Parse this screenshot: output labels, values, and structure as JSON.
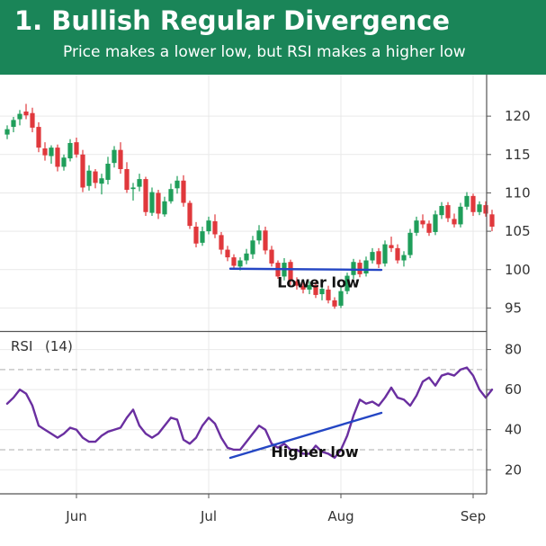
{
  "header": {
    "title": "1. Bullish Regular Divergence",
    "subtitle": "Price makes a lower low, but RSI makes a higher low"
  },
  "colors": {
    "header_bg": "#1a8558",
    "bull": "#1f9e5a",
    "bear": "#e0383c",
    "rsi_line": "#6a2fa0",
    "trendline": "#2446c4",
    "grid": "#e9e9e9",
    "guide": "#bdbdbd"
  },
  "chart_data": {
    "type": "candlestick",
    "title": "",
    "x_tick_labels": [
      "Jun",
      "Jul",
      "Aug",
      "Sep"
    ],
    "x_tick_index": [
      11,
      32,
      53,
      74
    ],
    "price_panel": {
      "ylim": [
        92,
        124
      ],
      "y_ticks": [
        95,
        100,
        105,
        110,
        115,
        120
      ],
      "ohlc": [
        [
          117.6,
          118.8,
          117.0,
          118.3
        ],
        [
          118.6,
          119.9,
          117.9,
          119.5
        ],
        [
          119.6,
          120.8,
          118.8,
          120.3
        ],
        [
          120.6,
          121.6,
          119.6,
          120.1
        ],
        [
          120.4,
          121.1,
          117.9,
          118.5
        ],
        [
          118.6,
          119.2,
          115.3,
          115.9
        ],
        [
          115.8,
          116.6,
          114.2,
          114.9
        ],
        [
          114.8,
          116.2,
          113.8,
          115.9
        ],
        [
          115.9,
          116.3,
          112.8,
          113.4
        ],
        [
          113.4,
          115.0,
          112.9,
          114.6
        ],
        [
          114.5,
          117.0,
          114.1,
          116.5
        ],
        [
          116.6,
          117.2,
          114.6,
          115.0
        ],
        [
          115.0,
          115.6,
          110.1,
          110.7
        ],
        [
          110.9,
          113.6,
          110.3,
          112.9
        ],
        [
          112.8,
          113.1,
          110.6,
          111.3
        ],
        [
          111.2,
          112.5,
          109.8,
          111.9
        ],
        [
          111.7,
          114.7,
          111.1,
          113.8
        ],
        [
          113.9,
          116.1,
          113.3,
          115.6
        ],
        [
          115.6,
          116.6,
          112.5,
          113.1
        ],
        [
          113.1,
          114.0,
          110.0,
          110.4
        ],
        [
          110.5,
          111.3,
          109.0,
          110.7
        ],
        [
          110.8,
          112.5,
          110.2,
          111.8
        ],
        [
          111.8,
          112.1,
          107.0,
          107.5
        ],
        [
          107.4,
          110.7,
          107.0,
          110.1
        ],
        [
          110.0,
          110.4,
          106.6,
          107.3
        ],
        [
          107.2,
          109.5,
          106.9,
          108.9
        ],
        [
          108.9,
          111.2,
          108.6,
          110.5
        ],
        [
          110.6,
          112.2,
          109.9,
          111.6
        ],
        [
          111.6,
          112.3,
          108.2,
          108.7
        ],
        [
          108.7,
          109.0,
          105.3,
          105.7
        ],
        [
          105.6,
          106.2,
          102.9,
          103.4
        ],
        [
          103.5,
          105.6,
          103.1,
          105.0
        ],
        [
          105.0,
          106.9,
          104.6,
          106.4
        ],
        [
          106.3,
          107.2,
          104.1,
          104.6
        ],
        [
          104.5,
          104.9,
          102.0,
          102.6
        ],
        [
          102.6,
          103.1,
          101.1,
          101.6
        ],
        [
          101.6,
          102.0,
          100.0,
          100.5
        ],
        [
          100.4,
          101.6,
          99.9,
          101.2
        ],
        [
          101.2,
          102.7,
          100.7,
          102.1
        ],
        [
          102.0,
          104.4,
          101.4,
          103.8
        ],
        [
          103.8,
          105.8,
          103.3,
          105.1
        ],
        [
          105.1,
          105.6,
          102.0,
          102.5
        ],
        [
          102.6,
          103.1,
          100.4,
          100.8
        ],
        [
          100.9,
          101.2,
          98.8,
          99.1
        ],
        [
          99.1,
          101.5,
          98.6,
          100.9
        ],
        [
          101.0,
          101.3,
          98.0,
          98.5
        ],
        [
          98.5,
          99.0,
          97.4,
          97.9
        ],
        [
          97.9,
          98.3,
          96.9,
          97.4
        ],
        [
          97.4,
          98.5,
          96.8,
          98.0
        ],
        [
          98.0,
          98.4,
          96.3,
          96.7
        ],
        [
          96.8,
          97.9,
          96.0,
          97.5
        ],
        [
          97.4,
          97.9,
          95.6,
          96.0
        ],
        [
          96.0,
          96.4,
          94.9,
          95.2
        ],
        [
          95.3,
          97.7,
          95.0,
          97.2
        ],
        [
          97.2,
          99.6,
          96.8,
          99.2
        ],
        [
          99.3,
          101.4,
          98.8,
          101.0
        ],
        [
          100.9,
          101.3,
          99.0,
          99.4
        ],
        [
          99.5,
          101.7,
          99.1,
          101.2
        ],
        [
          101.2,
          102.8,
          100.8,
          102.3
        ],
        [
          102.4,
          102.8,
          100.2,
          100.7
        ],
        [
          100.8,
          103.8,
          100.4,
          103.3
        ],
        [
          103.2,
          104.3,
          102.3,
          102.8
        ],
        [
          102.8,
          103.3,
          100.8,
          101.2
        ],
        [
          101.2,
          102.4,
          100.4,
          101.9
        ],
        [
          101.9,
          105.3,
          101.5,
          104.8
        ],
        [
          104.8,
          106.9,
          104.4,
          106.4
        ],
        [
          106.4,
          107.2,
          105.4,
          105.9
        ],
        [
          106.0,
          106.4,
          104.4,
          104.8
        ],
        [
          104.9,
          107.7,
          104.5,
          107.2
        ],
        [
          107.1,
          108.8,
          106.6,
          108.3
        ],
        [
          108.4,
          108.8,
          106.2,
          106.7
        ],
        [
          106.6,
          107.3,
          105.5,
          105.9
        ],
        [
          105.9,
          108.7,
          105.5,
          108.2
        ],
        [
          108.2,
          110.1,
          107.8,
          109.6
        ],
        [
          109.6,
          109.9,
          107.0,
          107.5
        ],
        [
          107.5,
          108.9,
          107.1,
          108.5
        ],
        [
          108.4,
          108.9,
          106.9,
          107.3
        ],
        [
          107.2,
          107.8,
          105.0,
          105.6
        ]
      ]
    },
    "rsi_panel": {
      "label": "RSI",
      "period_label": "(14)",
      "ylim": [
        8,
        87
      ],
      "y_ticks": [
        20,
        40,
        60,
        80
      ],
      "guides": [
        30,
        70
      ],
      "values": [
        53,
        56,
        60,
        58,
        52,
        42,
        40,
        38,
        36,
        38,
        41,
        40,
        36,
        34,
        34,
        37,
        39,
        40,
        41,
        46,
        50,
        42,
        38,
        36,
        38,
        42,
        46,
        45,
        35,
        33,
        36,
        42,
        46,
        43,
        36,
        31,
        30,
        30,
        34,
        38,
        42,
        40,
        33,
        31,
        33,
        30,
        30,
        28,
        28,
        32,
        29,
        28,
        26,
        30,
        37,
        47,
        55,
        53,
        54,
        52,
        56,
        61,
        56,
        55,
        52,
        57,
        64,
        66,
        62,
        67,
        68,
        67,
        70,
        71,
        67,
        60,
        56,
        60
      ]
    },
    "annotations": [
      {
        "label": "Lower low",
        "panel": "price",
        "from_index": 36,
        "to_index": 59
      },
      {
        "label": "Higher low",
        "panel": "rsi",
        "from_index": 36,
        "to_index": 59
      }
    ]
  }
}
